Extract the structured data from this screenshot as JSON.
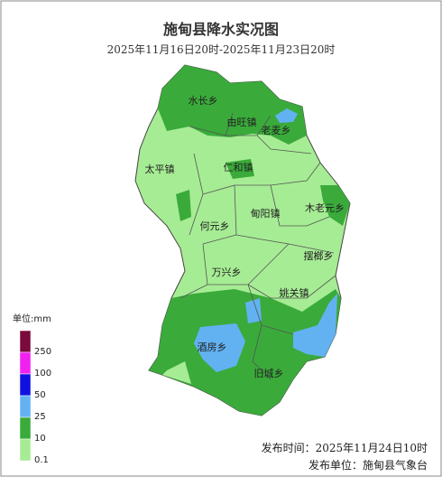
{
  "header": {
    "title": "施甸县降水实况图",
    "subtitle": "2025年11月16日20时-2025年11月23日20时"
  },
  "regions": [
    {
      "label": "水长乡"
    },
    {
      "label": "由旺镇"
    },
    {
      "label": "老麦乡"
    },
    {
      "label": "太平镇"
    },
    {
      "label": "仁和镇"
    },
    {
      "label": "甸阳镇"
    },
    {
      "label": "木老元乡"
    },
    {
      "label": "何元乡"
    },
    {
      "label": "摆榔乡"
    },
    {
      "label": "万兴乡"
    },
    {
      "label": "姚关镇"
    },
    {
      "label": "酒房乡"
    },
    {
      "label": "旧城乡"
    }
  ],
  "legend": {
    "unit": "单位:mm",
    "levels": [
      {
        "label": "250",
        "color": "#7a0a3c"
      },
      {
        "label": "100",
        "color": "#f020f0"
      },
      {
        "label": "50",
        "color": "#1010e0"
      },
      {
        "label": "25",
        "color": "#62b2f2"
      },
      {
        "label": "10",
        "color": "#3aab3a"
      },
      {
        "label": "0.1",
        "color": "#a6ec94"
      }
    ]
  },
  "footer": {
    "time": "发布时间：2025年11月24日10时",
    "unit": "发布单位：施甸县气象台"
  }
}
